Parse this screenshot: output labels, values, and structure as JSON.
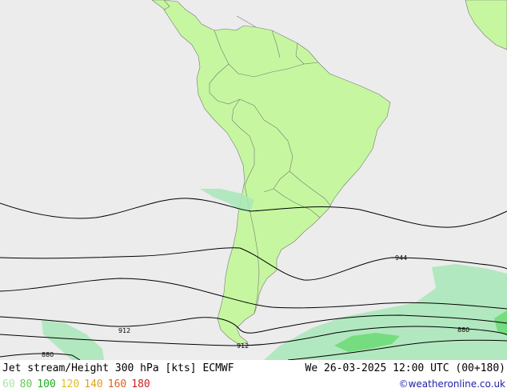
{
  "title": "Jet stream/Height 300 hPa [kts] ECMWF",
  "valid_time": "We 26-03-2025 12:00 UTC (00+180)",
  "credit": "©weatheronline.co.uk",
  "legend": [
    {
      "label": "60",
      "color": "#a8e8a0"
    },
    {
      "label": "80",
      "color": "#60cc50"
    },
    {
      "label": "100",
      "color": "#1eb01e"
    },
    {
      "label": "120",
      "color": "#e0c020"
    },
    {
      "label": "140",
      "color": "#e0a020"
    },
    {
      "label": "160",
      "color": "#e06020"
    },
    {
      "label": "180",
      "color": "#d02020"
    }
  ],
  "contour_labels": {
    "l944": "944",
    "l912a": "912",
    "l912b": "912",
    "l880a": "880",
    "l880b": "880"
  },
  "colors": {
    "sea": "#ececec",
    "land": "#c6f7a0",
    "jet_light": "#a8e8b8",
    "jet_mid": "#6edc78"
  }
}
